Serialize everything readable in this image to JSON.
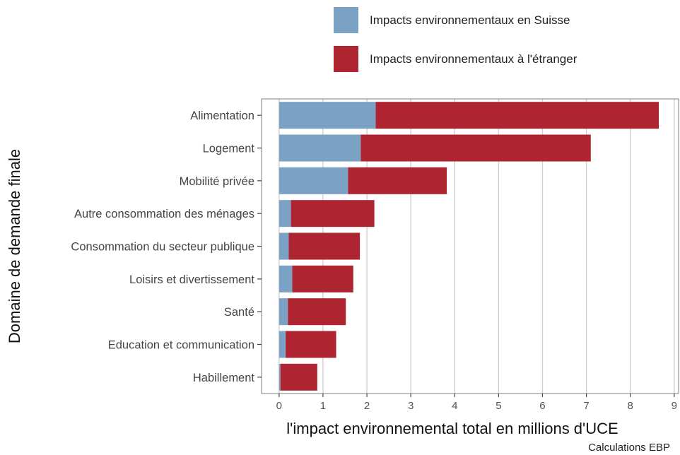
{
  "chart_data": {
    "type": "bar",
    "orientation": "horizontal",
    "stacked": true,
    "categories": [
      "Alimentation",
      "Logement",
      "Mobilité privée",
      "Autre consommation des ménages",
      "Consommation du secteur publique",
      "Loisirs et divertissement",
      "Santé",
      "Education et communication",
      "Habillement"
    ],
    "series": [
      {
        "name": "Impacts environnementaux en Suisse",
        "color": "#7BA2C4",
        "values": [
          2.2,
          1.86,
          1.57,
          0.27,
          0.22,
          0.3,
          0.2,
          0.15,
          0.03
        ]
      },
      {
        "name": "Impacts environnementaux à l'étranger",
        "color": "#AE2531",
        "values": [
          6.45,
          5.24,
          2.25,
          1.9,
          1.62,
          1.39,
          1.32,
          1.15,
          0.84
        ]
      }
    ],
    "xlabel": "l'impact environnemental total en millions d'UCE",
    "ylabel": "Domaine de demande finale",
    "xlim": [
      -0.4,
      9.1
    ],
    "xticks": [
      0,
      1,
      2,
      3,
      4,
      5,
      6,
      7,
      8,
      9
    ],
    "grid": true,
    "legend_position": "top"
  },
  "caption": "Calculations EBP"
}
